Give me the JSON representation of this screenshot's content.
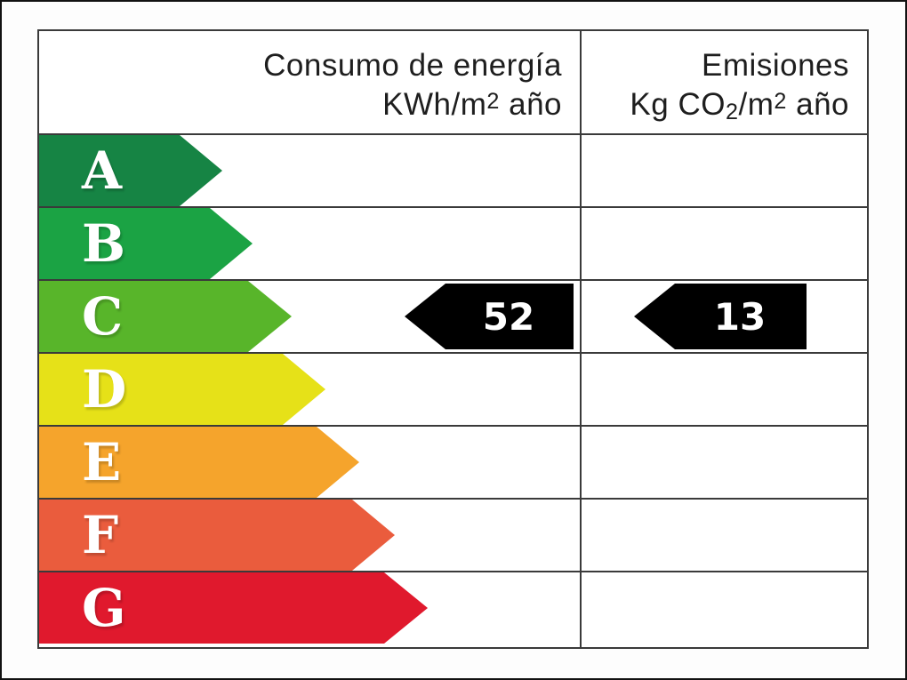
{
  "columns": [
    {
      "title": "Consumo de energía",
      "unit_pre": "KWh/m",
      "unit_sup": "2",
      "unit_post": " año"
    },
    {
      "title": "Emisiones",
      "unit_pre": "Kg CO",
      "unit_sub": "2",
      "unit_mid": "/m",
      "unit_sup": "2",
      "unit_post": " año"
    }
  ],
  "ratings": [
    {
      "letter": "A",
      "color": "#168444",
      "body": 158,
      "tip": 206
    },
    {
      "letter": "B",
      "color": "#1ba344",
      "body": 192,
      "tip": 240
    },
    {
      "letter": "C",
      "color": "#58b52a",
      "body": 235,
      "tip": 284
    },
    {
      "letter": "D",
      "color": "#e6e118",
      "body": 274,
      "tip": 322
    },
    {
      "letter": "E",
      "color": "#f5a42c",
      "body": 312,
      "tip": 360
    },
    {
      "letter": "F",
      "color": "#ea5c3d",
      "body": 352,
      "tip": 400
    },
    {
      "letter": "G",
      "color": "#e0192d",
      "body": 388,
      "tip": 437
    }
  ],
  "values": {
    "rating": "C",
    "consumption": "52",
    "emissions": "13",
    "arrow_color": "#000000"
  },
  "chart_data": {
    "type": "table",
    "title": "Energy rating label",
    "columns": [
      "Consumo de energía KWh/m2 año",
      "Emisiones Kg CO2/m2 año"
    ],
    "categories": [
      "A",
      "B",
      "C",
      "D",
      "E",
      "F",
      "G"
    ],
    "band_colors": [
      "#168444",
      "#1ba344",
      "#58b52a",
      "#e6e118",
      "#f5a42c",
      "#ea5c3d",
      "#e0192d"
    ],
    "rating": "C",
    "values": {
      "consumo_kwh_m2_ano": 52,
      "emisiones_kg_co2_m2_ano": 13
    }
  }
}
